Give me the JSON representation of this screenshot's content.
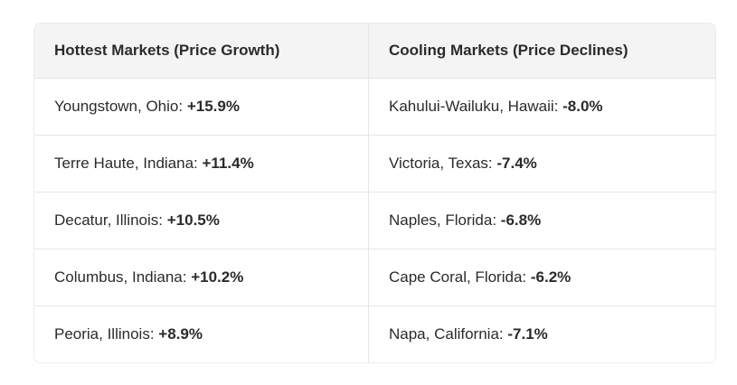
{
  "table": {
    "headers": [
      "Hottest Markets (Price Growth)",
      "Cooling Markets (Price Declines)"
    ],
    "rows": [
      [
        {
          "place": "Youngstown, Ohio:",
          "change": "+15.9%"
        },
        {
          "place": "Kahului-Wailuku, Hawaii:",
          "change": "-8.0%"
        }
      ],
      [
        {
          "place": "Terre Haute, Indiana:",
          "change": "+11.4%"
        },
        {
          "place": "Victoria, Texas:",
          "change": "-7.4%"
        }
      ],
      [
        {
          "place": "Decatur, Illinois:",
          "change": "+10.5%"
        },
        {
          "place": "Naples, Florida:",
          "change": "-6.8%"
        }
      ],
      [
        {
          "place": "Columbus, Indiana:",
          "change": "+10.2%"
        },
        {
          "place": "Cape Coral, Florida:",
          "change": "-6.2%"
        }
      ],
      [
        {
          "place": "Peoria, Illinois:",
          "change": "+8.9%"
        },
        {
          "place": "Napa, California:",
          "change": "-7.1%"
        }
      ]
    ]
  }
}
